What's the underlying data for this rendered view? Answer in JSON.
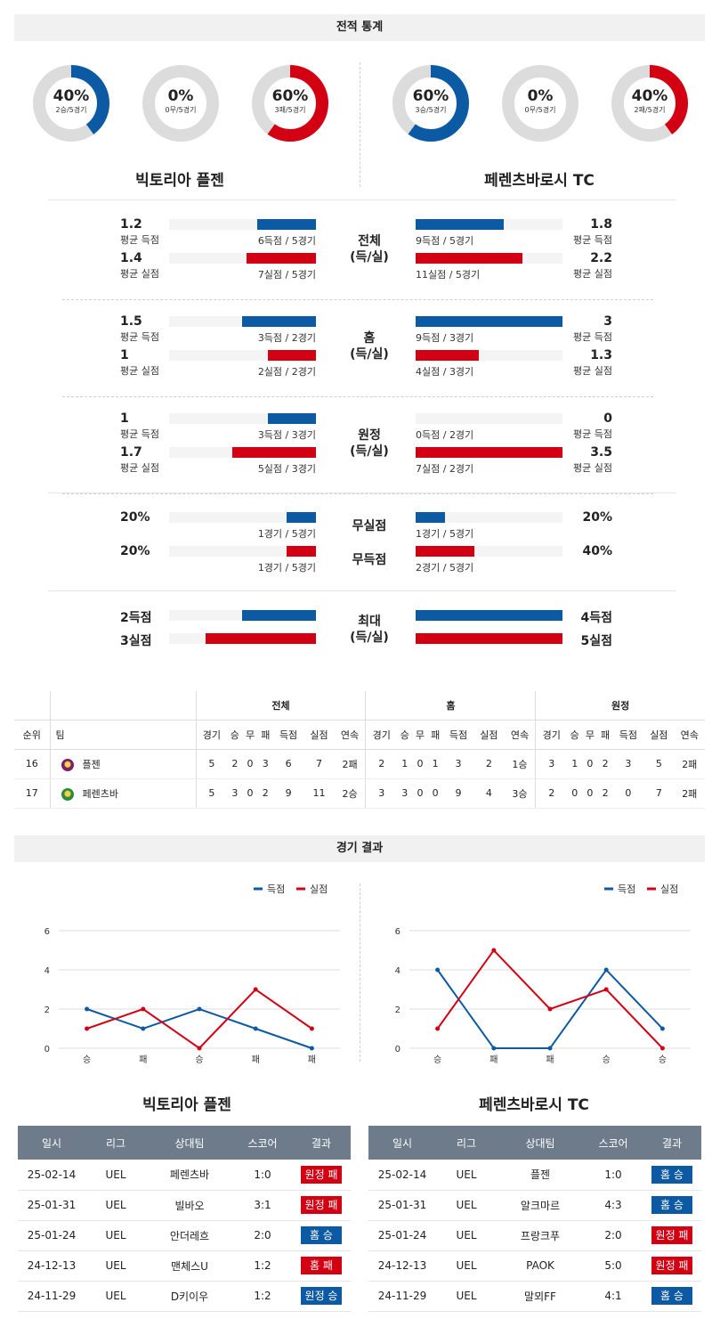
{
  "sections": {
    "stats_title": "전적 통계",
    "results_title": "경기 결과"
  },
  "colors": {
    "blue": "#0d5aa4",
    "red": "#d30014",
    "track": "#dcdcdc"
  },
  "teams": {
    "left": {
      "name": "빅토리아 플젠",
      "short": "플젠"
    },
    "right": {
      "name": "페렌츠바로시 TC",
      "short": "페렌츠바"
    }
  },
  "donuts": {
    "left": [
      {
        "pct": "40%",
        "sub": "2승/5경기",
        "value": 0.4,
        "color": "#0d5aa4"
      },
      {
        "pct": "0%",
        "sub": "0무/5경기",
        "value": 0,
        "color": "#0d5aa4"
      },
      {
        "pct": "60%",
        "sub": "3패/5경기",
        "value": 0.6,
        "color": "#d30014"
      }
    ],
    "right": [
      {
        "pct": "60%",
        "sub": "3승/5경기",
        "value": 0.6,
        "color": "#0d5aa4"
      },
      {
        "pct": "0%",
        "sub": "0무/5경기",
        "value": 0,
        "color": "#0d5aa4"
      },
      {
        "pct": "40%",
        "sub": "2패/5경기",
        "value": 0.4,
        "color": "#d30014"
      }
    ]
  },
  "compare": [
    {
      "label1": "전체",
      "label2": "(득/실)",
      "left": {
        "s_val": "1.2",
        "s_lbl": "평균 득점",
        "s_txt": "6득점 / 5경기",
        "s_frac": 0.4,
        "c_val": "1.4",
        "c_lbl": "평균 실점",
        "c_txt": "7실점 / 5경기",
        "c_frac": 0.47
      },
      "right": {
        "s_val": "1.8",
        "s_lbl": "평균 득점",
        "s_txt": "9득점 / 5경기",
        "s_frac": 0.6,
        "c_val": "2.2",
        "c_lbl": "평균 실점",
        "c_txt": "11실점 / 5경기",
        "c_frac": 0.73
      }
    },
    {
      "label1": "홈",
      "label2": "(득/실)",
      "left": {
        "s_val": "1.5",
        "s_lbl": "평균 득점",
        "s_txt": "3득점 / 2경기",
        "s_frac": 0.5,
        "c_val": "1",
        "c_lbl": "평균 실점",
        "c_txt": "2실점 / 2경기",
        "c_frac": 0.33
      },
      "right": {
        "s_val": "3",
        "s_lbl": "평균 득점",
        "s_txt": "9득점 / 3경기",
        "s_frac": 1.0,
        "c_val": "1.3",
        "c_lbl": "평균 실점",
        "c_txt": "4실점 / 3경기",
        "c_frac": 0.43
      }
    },
    {
      "label1": "원정",
      "label2": "(득/실)",
      "left": {
        "s_val": "1",
        "s_lbl": "평균 득점",
        "s_txt": "3득점 / 3경기",
        "s_frac": 0.33,
        "c_val": "1.7",
        "c_lbl": "평균 실점",
        "c_txt": "5실점 / 3경기",
        "c_frac": 0.57
      },
      "right": {
        "s_val": "0",
        "s_lbl": "평균 득점",
        "s_txt": "0득점 / 2경기",
        "s_frac": 0,
        "c_val": "3.5",
        "c_lbl": "평균 실점",
        "c_txt": "7실점 / 2경기",
        "c_frac": 1.0
      }
    }
  ],
  "clean": {
    "label_a": "무실점",
    "label_b": "무득점",
    "left": {
      "a_val": "20%",
      "a_txt": "1경기 / 5경기",
      "a_frac": 0.2,
      "b_val": "20%",
      "b_txt": "1경기 / 5경기",
      "b_frac": 0.2
    },
    "right": {
      "a_val": "20%",
      "a_txt": "1경기 / 5경기",
      "a_frac": 0.2,
      "b_val": "40%",
      "b_txt": "2경기 / 5경기",
      "b_frac": 0.4
    }
  },
  "max": {
    "label1": "최대",
    "label2": "(득/실)",
    "left": {
      "s_val": "2득점",
      "s_frac": 0.5,
      "c_val": "3실점",
      "c_frac": 0.75
    },
    "right": {
      "s_val": "4득점",
      "s_frac": 1.0,
      "c_val": "5실점",
      "c_frac": 1.0
    }
  },
  "standings": {
    "groups": [
      "전체",
      "홈",
      "원정"
    ],
    "head_rank": "순위",
    "head_team": "팀",
    "cols": [
      "경기",
      "승",
      "무",
      "패",
      "득점",
      "실점",
      "연속"
    ],
    "rows": [
      {
        "rank": "16",
        "team": "플젠",
        "badge": "#7a1f6e",
        "all": [
          "5",
          "2",
          "0",
          "3",
          "6",
          "7",
          "2패"
        ],
        "home": [
          "2",
          "1",
          "0",
          "1",
          "3",
          "2",
          "1승"
        ],
        "away": [
          "3",
          "1",
          "0",
          "2",
          "3",
          "5",
          "2패"
        ]
      },
      {
        "rank": "17",
        "team": "페렌츠바",
        "badge": "#2e8b3a",
        "all": [
          "5",
          "3",
          "0",
          "2",
          "9",
          "11",
          "2승"
        ],
        "home": [
          "3",
          "3",
          "0",
          "0",
          "9",
          "4",
          "3승"
        ],
        "away": [
          "2",
          "0",
          "0",
          "2",
          "0",
          "7",
          "2패"
        ]
      }
    ]
  },
  "chart_data": [
    {
      "type": "line",
      "categories": [
        "승",
        "패",
        "승",
        "패",
        "패"
      ],
      "ylim": [
        0,
        6
      ],
      "yticks": [
        "0",
        "2",
        "4",
        "6"
      ],
      "series": [
        {
          "name": "득점",
          "color": "#0d5aa4",
          "values": [
            2,
            1,
            2,
            1,
            0
          ]
        },
        {
          "name": "실점",
          "color": "#d30014",
          "values": [
            1,
            2,
            0,
            3,
            1
          ]
        }
      ]
    },
    {
      "type": "line",
      "categories": [
        "승",
        "패",
        "패",
        "승",
        "승"
      ],
      "ylim": [
        0,
        6
      ],
      "yticks": [
        "0",
        "2",
        "4",
        "6"
      ],
      "series": [
        {
          "name": "득점",
          "color": "#0d5aa4",
          "values": [
            4,
            0,
            0,
            4,
            1
          ]
        },
        {
          "name": "실점",
          "color": "#d30014",
          "values": [
            1,
            5,
            2,
            3,
            0
          ]
        }
      ]
    }
  ],
  "results": {
    "headers": [
      "일시",
      "리그",
      "상대팀",
      "스코어",
      "결과"
    ],
    "left": [
      {
        "date": "25-02-14",
        "league": "UEL",
        "opp": "페렌츠바",
        "score": "1:0",
        "result": "원정 패",
        "win": false
      },
      {
        "date": "25-01-31",
        "league": "UEL",
        "opp": "빌바오",
        "score": "3:1",
        "result": "원정 패",
        "win": false
      },
      {
        "date": "25-01-24",
        "league": "UEL",
        "opp": "안더레흐",
        "score": "2:0",
        "result": "홈 승",
        "win": true
      },
      {
        "date": "24-12-13",
        "league": "UEL",
        "opp": "맨체스U",
        "score": "1:2",
        "result": "홈 패",
        "win": false
      },
      {
        "date": "24-11-29",
        "league": "UEL",
        "opp": "D키이우",
        "score": "1:2",
        "result": "원정 승",
        "win": true
      }
    ],
    "right": [
      {
        "date": "25-02-14",
        "league": "UEL",
        "opp": "플젠",
        "score": "1:0",
        "result": "홈 승",
        "win": true
      },
      {
        "date": "25-01-31",
        "league": "UEL",
        "opp": "알크마르",
        "score": "4:3",
        "result": "홈 승",
        "win": true
      },
      {
        "date": "25-01-24",
        "league": "UEL",
        "opp": "프랑크푸",
        "score": "2:0",
        "result": "원정 패",
        "win": false
      },
      {
        "date": "24-12-13",
        "league": "UEL",
        "opp": "PAOK",
        "score": "5:0",
        "result": "원정 패",
        "win": false
      },
      {
        "date": "24-11-29",
        "league": "UEL",
        "opp": "말뫼FF",
        "score": "4:1",
        "result": "홈 승",
        "win": true
      }
    ]
  }
}
